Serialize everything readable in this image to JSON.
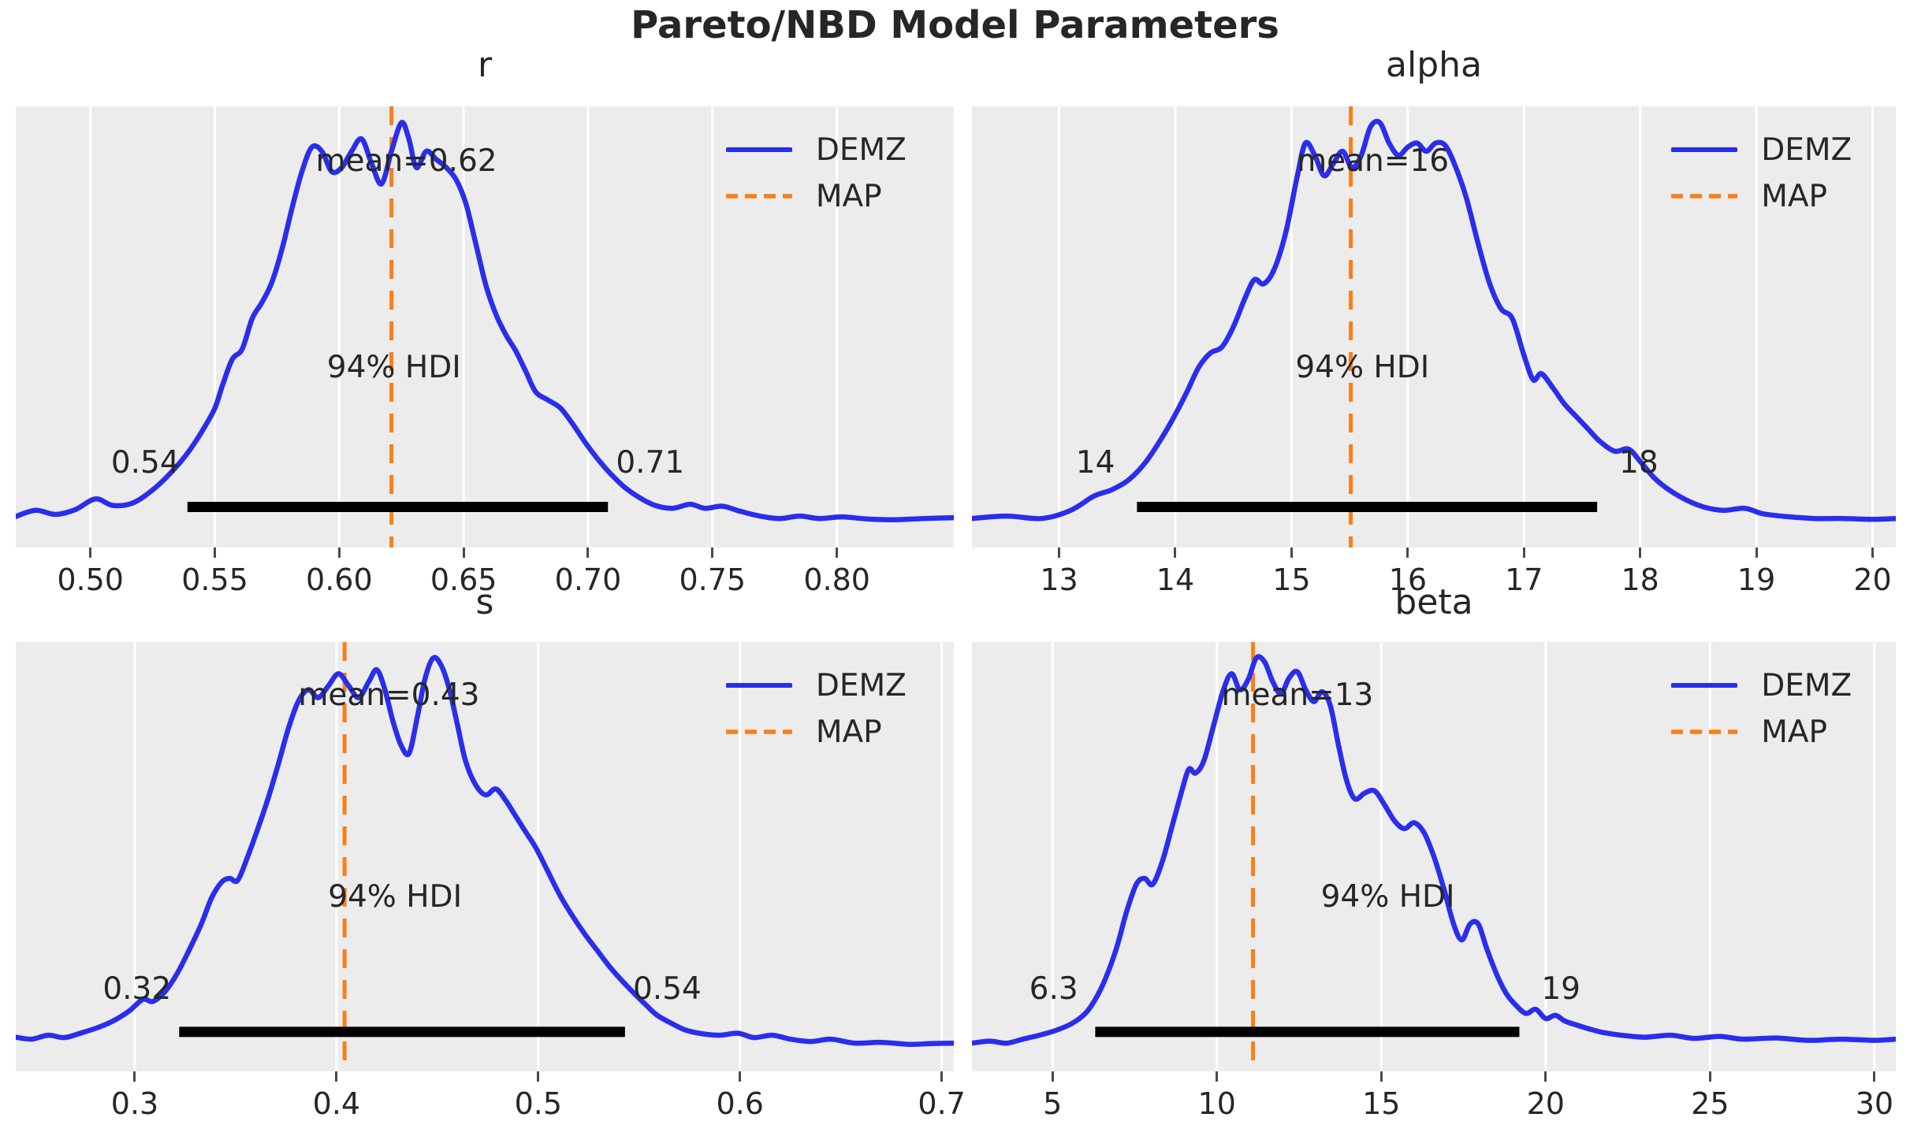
{
  "figure_title": "Pareto/NBD Model Parameters",
  "legend": {
    "demz": "DEMZ",
    "map": "MAP"
  },
  "colors": {
    "curve": "#2a2eec",
    "map_line": "#fa7e17",
    "hdi_bar": "#000000",
    "plot_bg": "#ececec",
    "gridline": "#ffffff",
    "text": "#262626",
    "tick": "#4a4a4a"
  },
  "chart_data": [
    {
      "type": "line",
      "title": "r",
      "series": "DEMZ",
      "mean_label": "mean=0.62",
      "mean_value": 0.62,
      "map_value": 0.621,
      "hdi": {
        "text": "94% HDI",
        "low": 0.539,
        "high": 0.708,
        "low_label": "0.54",
        "high_label": "0.71"
      },
      "xlim": [
        0.47,
        0.847
      ],
      "xticks": [
        0.5,
        0.55,
        0.6,
        0.65,
        0.7,
        0.75,
        0.8
      ],
      "xtick_labels": [
        "0.50",
        "0.55",
        "0.60",
        "0.65",
        "0.70",
        "0.75",
        "0.80"
      ],
      "label_x": {
        "mean": 0.627,
        "hdi_text": 0.622
      },
      "density_norm_0to1": [
        [
          0.47,
          0.035
        ],
        [
          0.478,
          0.05
        ],
        [
          0.486,
          0.04
        ],
        [
          0.494,
          0.052
        ],
        [
          0.502,
          0.078
        ],
        [
          0.509,
          0.062
        ],
        [
          0.517,
          0.068
        ],
        [
          0.525,
          0.1
        ],
        [
          0.532,
          0.14
        ],
        [
          0.539,
          0.19
        ],
        [
          0.545,
          0.245
        ],
        [
          0.55,
          0.3
        ],
        [
          0.553,
          0.355
        ],
        [
          0.557,
          0.42
        ],
        [
          0.561,
          0.445
        ],
        [
          0.565,
          0.52
        ],
        [
          0.569,
          0.56
        ],
        [
          0.573,
          0.61
        ],
        [
          0.577,
          0.69
        ],
        [
          0.581,
          0.79
        ],
        [
          0.585,
          0.88
        ],
        [
          0.589,
          0.94
        ],
        [
          0.593,
          0.93
        ],
        [
          0.597,
          0.88
        ],
        [
          0.601,
          0.89
        ],
        [
          0.605,
          0.93
        ],
        [
          0.609,
          0.96
        ],
        [
          0.613,
          0.9
        ],
        [
          0.617,
          0.85
        ],
        [
          0.621,
          0.93
        ],
        [
          0.625,
          1.0
        ],
        [
          0.628,
          0.96
        ],
        [
          0.631,
          0.89
        ],
        [
          0.635,
          0.93
        ],
        [
          0.639,
          0.91
        ],
        [
          0.643,
          0.89
        ],
        [
          0.647,
          0.86
        ],
        [
          0.651,
          0.8
        ],
        [
          0.655,
          0.7
        ],
        [
          0.659,
          0.6
        ],
        [
          0.663,
          0.53
        ],
        [
          0.667,
          0.48
        ],
        [
          0.671,
          0.44
        ],
        [
          0.675,
          0.39
        ],
        [
          0.679,
          0.34
        ],
        [
          0.684,
          0.32
        ],
        [
          0.689,
          0.3
        ],
        [
          0.694,
          0.26
        ],
        [
          0.699,
          0.215
        ],
        [
          0.704,
          0.175
        ],
        [
          0.709,
          0.14
        ],
        [
          0.715,
          0.105
        ],
        [
          0.721,
          0.08
        ],
        [
          0.727,
          0.062
        ],
        [
          0.734,
          0.055
        ],
        [
          0.741,
          0.065
        ],
        [
          0.747,
          0.055
        ],
        [
          0.754,
          0.06
        ],
        [
          0.761,
          0.048
        ],
        [
          0.769,
          0.036
        ],
        [
          0.777,
          0.03
        ],
        [
          0.785,
          0.036
        ],
        [
          0.793,
          0.03
        ],
        [
          0.802,
          0.034
        ],
        [
          0.812,
          0.029
        ],
        [
          0.823,
          0.027
        ],
        [
          0.835,
          0.03
        ],
        [
          0.847,
          0.032
        ]
      ]
    },
    {
      "type": "line",
      "title": "alpha",
      "series": "DEMZ",
      "mean_label": "mean=16",
      "mean_value": 16,
      "map_value": 15.51,
      "hdi": {
        "text": "94% HDI",
        "low": 13.67,
        "high": 17.63,
        "low_label": "14",
        "high_label": "18"
      },
      "xlim": [
        12.25,
        20.2
      ],
      "xticks": [
        13,
        14,
        15,
        16,
        17,
        18,
        19,
        20
      ],
      "xtick_labels": [
        "13",
        "14",
        "15",
        "16",
        "17",
        "18",
        "19",
        "20"
      ],
      "label_x": {
        "mean": 15.7,
        "hdi_text": 15.61
      },
      "density_norm_0to1": [
        [
          12.25,
          0.03
        ],
        [
          12.55,
          0.036
        ],
        [
          12.85,
          0.03
        ],
        [
          13.1,
          0.05
        ],
        [
          13.3,
          0.085
        ],
        [
          13.45,
          0.1
        ],
        [
          13.6,
          0.125
        ],
        [
          13.75,
          0.17
        ],
        [
          13.9,
          0.235
        ],
        [
          14.0,
          0.285
        ],
        [
          14.1,
          0.34
        ],
        [
          14.2,
          0.4
        ],
        [
          14.3,
          0.435
        ],
        [
          14.4,
          0.45
        ],
        [
          14.5,
          0.5
        ],
        [
          14.6,
          0.57
        ],
        [
          14.68,
          0.615
        ],
        [
          14.76,
          0.605
        ],
        [
          14.85,
          0.64
        ],
        [
          14.95,
          0.73
        ],
        [
          15.05,
          0.87
        ],
        [
          15.12,
          0.95
        ],
        [
          15.2,
          0.92
        ],
        [
          15.28,
          0.87
        ],
        [
          15.36,
          0.9
        ],
        [
          15.44,
          0.93
        ],
        [
          15.52,
          0.89
        ],
        [
          15.6,
          0.92
        ],
        [
          15.68,
          0.99
        ],
        [
          15.76,
          1.0
        ],
        [
          15.84,
          0.95
        ],
        [
          15.92,
          0.92
        ],
        [
          16.0,
          0.94
        ],
        [
          16.08,
          0.95
        ],
        [
          16.16,
          0.93
        ],
        [
          16.24,
          0.95
        ],
        [
          16.32,
          0.945
        ],
        [
          16.4,
          0.9
        ],
        [
          16.5,
          0.82
        ],
        [
          16.6,
          0.71
        ],
        [
          16.7,
          0.61
        ],
        [
          16.8,
          0.545
        ],
        [
          16.9,
          0.52
        ],
        [
          17.0,
          0.43
        ],
        [
          17.08,
          0.37
        ],
        [
          17.15,
          0.385
        ],
        [
          17.25,
          0.35
        ],
        [
          17.35,
          0.31
        ],
        [
          17.45,
          0.28
        ],
        [
          17.55,
          0.25
        ],
        [
          17.65,
          0.22
        ],
        [
          17.78,
          0.195
        ],
        [
          17.9,
          0.2
        ],
        [
          18.0,
          0.17
        ],
        [
          18.12,
          0.13
        ],
        [
          18.25,
          0.1
        ],
        [
          18.4,
          0.075
        ],
        [
          18.55,
          0.058
        ],
        [
          18.72,
          0.05
        ],
        [
          18.9,
          0.055
        ],
        [
          19.05,
          0.042
        ],
        [
          19.25,
          0.035
        ],
        [
          19.5,
          0.03
        ],
        [
          19.75,
          0.03
        ],
        [
          20.0,
          0.028
        ],
        [
          20.2,
          0.03
        ]
      ]
    },
    {
      "type": "line",
      "title": "s",
      "series": "DEMZ",
      "mean_label": "mean=0.43",
      "mean_value": 0.43,
      "map_value": 0.404,
      "hdi": {
        "text": "94% HDI",
        "low": 0.322,
        "high": 0.543,
        "low_label": "0.32",
        "high_label": "0.54"
      },
      "xlim": [
        0.241,
        0.706
      ],
      "xticks": [
        0.3,
        0.4,
        0.5,
        0.6,
        0.7
      ],
      "xtick_labels": [
        "0.3",
        "0.4",
        "0.5",
        "0.6",
        "0.7"
      ],
      "label_x": {
        "mean": 0.426,
        "hdi_text": 0.429
      },
      "density_norm_0to1": [
        [
          0.241,
          0.045
        ],
        [
          0.249,
          0.04
        ],
        [
          0.257,
          0.05
        ],
        [
          0.265,
          0.044
        ],
        [
          0.273,
          0.055
        ],
        [
          0.281,
          0.068
        ],
        [
          0.289,
          0.085
        ],
        [
          0.297,
          0.11
        ],
        [
          0.304,
          0.14
        ],
        [
          0.309,
          0.135
        ],
        [
          0.315,
          0.16
        ],
        [
          0.321,
          0.205
        ],
        [
          0.327,
          0.265
        ],
        [
          0.333,
          0.33
        ],
        [
          0.338,
          0.395
        ],
        [
          0.343,
          0.435
        ],
        [
          0.347,
          0.445
        ],
        [
          0.351,
          0.44
        ],
        [
          0.356,
          0.5
        ],
        [
          0.361,
          0.57
        ],
        [
          0.366,
          0.645
        ],
        [
          0.371,
          0.73
        ],
        [
          0.376,
          0.82
        ],
        [
          0.381,
          0.89
        ],
        [
          0.386,
          0.92
        ],
        [
          0.391,
          0.9
        ],
        [
          0.396,
          0.93
        ],
        [
          0.401,
          0.96
        ],
        [
          0.406,
          0.93
        ],
        [
          0.411,
          0.9
        ],
        [
          0.416,
          0.94
        ],
        [
          0.42,
          0.97
        ],
        [
          0.424,
          0.92
        ],
        [
          0.428,
          0.84
        ],
        [
          0.432,
          0.78
        ],
        [
          0.436,
          0.76
        ],
        [
          0.44,
          0.85
        ],
        [
          0.444,
          0.95
        ],
        [
          0.448,
          1.0
        ],
        [
          0.452,
          0.98
        ],
        [
          0.456,
          0.92
        ],
        [
          0.46,
          0.83
        ],
        [
          0.464,
          0.74
        ],
        [
          0.469,
          0.68
        ],
        [
          0.474,
          0.655
        ],
        [
          0.479,
          0.67
        ],
        [
          0.484,
          0.64
        ],
        [
          0.489,
          0.6
        ],
        [
          0.494,
          0.56
        ],
        [
          0.499,
          0.52
        ],
        [
          0.505,
          0.46
        ],
        [
          0.511,
          0.4
        ],
        [
          0.517,
          0.35
        ],
        [
          0.523,
          0.305
        ],
        [
          0.529,
          0.265
        ],
        [
          0.535,
          0.225
        ],
        [
          0.541,
          0.19
        ],
        [
          0.547,
          0.158
        ],
        [
          0.553,
          0.128
        ],
        [
          0.559,
          0.1
        ],
        [
          0.566,
          0.08
        ],
        [
          0.573,
          0.063
        ],
        [
          0.581,
          0.054
        ],
        [
          0.59,
          0.05
        ],
        [
          0.599,
          0.055
        ],
        [
          0.607,
          0.044
        ],
        [
          0.616,
          0.05
        ],
        [
          0.625,
          0.04
        ],
        [
          0.635,
          0.034
        ],
        [
          0.645,
          0.04
        ],
        [
          0.657,
          0.03
        ],
        [
          0.67,
          0.032
        ],
        [
          0.684,
          0.027
        ],
        [
          0.695,
          0.029
        ],
        [
          0.706,
          0.03
        ]
      ]
    },
    {
      "type": "line",
      "title": "beta",
      "series": "DEMZ",
      "mean_label": "mean=13",
      "mean_value": 13,
      "map_value": 11.1,
      "hdi": {
        "text": "94% HDI",
        "low": 6.3,
        "high": 19.2,
        "low_label": "6.3",
        "high_label": "19"
      },
      "xlim": [
        2.55,
        30.65
      ],
      "xticks": [
        5,
        10,
        15,
        20,
        25,
        30
      ],
      "xtick_labels": [
        "5",
        "10",
        "15",
        "20",
        "25",
        "30"
      ],
      "label_x": {
        "mean": 12.45,
        "hdi_text": 15.2
      },
      "density_norm_0to1": [
        [
          2.55,
          0.03
        ],
        [
          3.1,
          0.035
        ],
        [
          3.6,
          0.03
        ],
        [
          4.1,
          0.04
        ],
        [
          4.6,
          0.05
        ],
        [
          5.1,
          0.062
        ],
        [
          5.6,
          0.08
        ],
        [
          6.0,
          0.105
        ],
        [
          6.3,
          0.14
        ],
        [
          6.6,
          0.19
        ],
        [
          6.95,
          0.27
        ],
        [
          7.25,
          0.36
        ],
        [
          7.55,
          0.43
        ],
        [
          7.8,
          0.445
        ],
        [
          8.05,
          0.43
        ],
        [
          8.35,
          0.49
        ],
        [
          8.65,
          0.58
        ],
        [
          8.95,
          0.67
        ],
        [
          9.15,
          0.72
        ],
        [
          9.35,
          0.71
        ],
        [
          9.6,
          0.74
        ],
        [
          9.9,
          0.83
        ],
        [
          10.2,
          0.92
        ],
        [
          10.45,
          0.96
        ],
        [
          10.7,
          0.92
        ],
        [
          10.95,
          0.945
        ],
        [
          11.2,
          1.0
        ],
        [
          11.45,
          0.99
        ],
        [
          11.7,
          0.94
        ],
        [
          11.95,
          0.91
        ],
        [
          12.2,
          0.95
        ],
        [
          12.45,
          0.965
        ],
        [
          12.7,
          0.92
        ],
        [
          12.95,
          0.89
        ],
        [
          13.2,
          0.915
        ],
        [
          13.45,
          0.88
        ],
        [
          13.7,
          0.78
        ],
        [
          13.95,
          0.69
        ],
        [
          14.2,
          0.645
        ],
        [
          14.5,
          0.66
        ],
        [
          14.8,
          0.665
        ],
        [
          15.1,
          0.63
        ],
        [
          15.4,
          0.59
        ],
        [
          15.7,
          0.57
        ],
        [
          16.0,
          0.585
        ],
        [
          16.3,
          0.56
        ],
        [
          16.6,
          0.5
        ],
        [
          16.9,
          0.42
        ],
        [
          17.2,
          0.33
        ],
        [
          17.45,
          0.29
        ],
        [
          17.7,
          0.33
        ],
        [
          17.95,
          0.33
        ],
        [
          18.2,
          0.27
        ],
        [
          18.5,
          0.205
        ],
        [
          18.8,
          0.155
        ],
        [
          19.1,
          0.125
        ],
        [
          19.4,
          0.105
        ],
        [
          19.7,
          0.115
        ],
        [
          20.0,
          0.092
        ],
        [
          20.3,
          0.1
        ],
        [
          20.6,
          0.085
        ],
        [
          21.0,
          0.074
        ],
        [
          21.4,
          0.064
        ],
        [
          21.8,
          0.056
        ],
        [
          22.3,
          0.05
        ],
        [
          23.0,
          0.045
        ],
        [
          23.8,
          0.05
        ],
        [
          24.5,
          0.042
        ],
        [
          25.3,
          0.047
        ],
        [
          26.0,
          0.04
        ],
        [
          27.0,
          0.043
        ],
        [
          28.0,
          0.037
        ],
        [
          29.0,
          0.04
        ],
        [
          30.0,
          0.037
        ],
        [
          30.65,
          0.04
        ]
      ]
    }
  ]
}
